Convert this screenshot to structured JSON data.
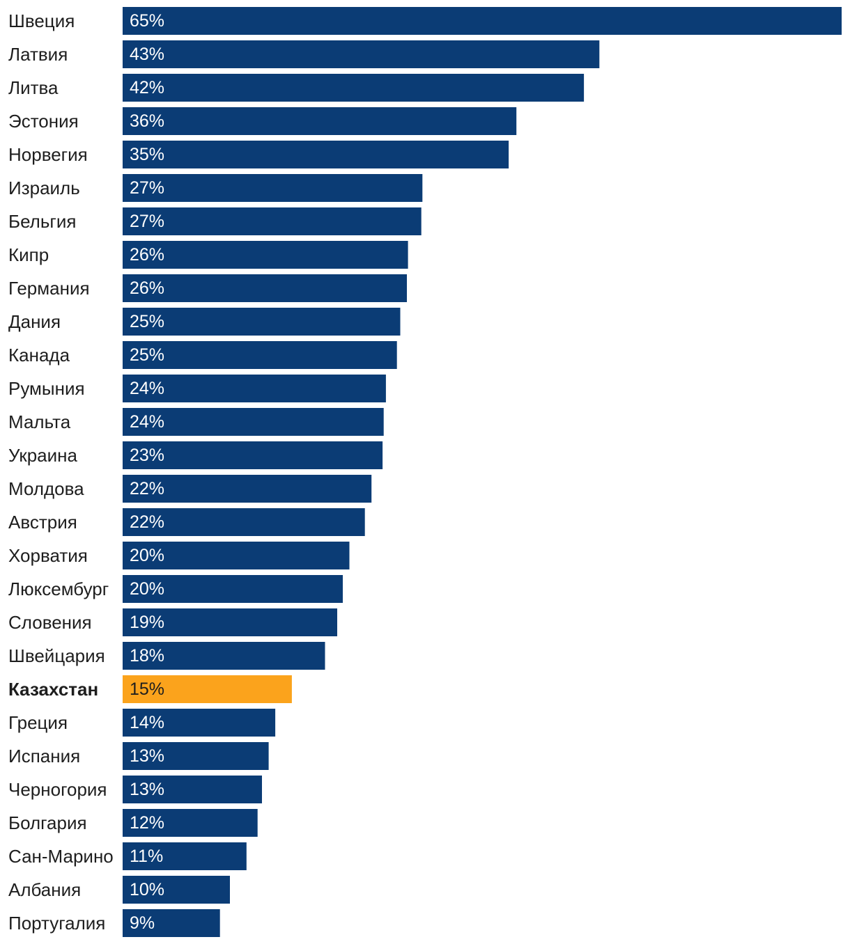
{
  "chart_data": {
    "type": "bar",
    "orientation": "horizontal",
    "title": "",
    "xlabel": "",
    "ylabel": "",
    "xlim": [
      0,
      65
    ],
    "grid": false,
    "legend": "none",
    "colors": {
      "default": "#0b3c75",
      "highlight": "#fba31c",
      "label_on_default": "#ffffff",
      "label_on_highlight": "#1e1e1e"
    },
    "highlight_category": "Казахстан",
    "categories": [
      "Швеция",
      "Латвия",
      "Литва",
      "Эстония",
      "Норвегия",
      "Израиль",
      "Бельгия",
      "Кипр",
      "Германия",
      "Дания",
      "Канада",
      "Румыния",
      "Мальта",
      "Украина",
      "Молдова",
      "Австрия",
      "Хорватия",
      "Люксембург",
      "Словения",
      "Швейцария",
      "Казахстан",
      "Греция",
      "Испания",
      "Черногория",
      "Болгария",
      "Сан-Марино",
      "Албания",
      "Португалия"
    ],
    "values": [
      65,
      43.1,
      41.7,
      35.6,
      34.9,
      27.1,
      27,
      25.8,
      25.7,
      25.1,
      24.8,
      23.8,
      23.6,
      23.5,
      22.5,
      21.9,
      20.5,
      19.9,
      19.4,
      18.3,
      15.3,
      13.8,
      13.2,
      12.6,
      12.2,
      11.2,
      9.7,
      8.8
    ],
    "value_labels": [
      "65%",
      "43%",
      "42%",
      "36%",
      "35%",
      "27%",
      "27%",
      "26%",
      "26%",
      "25%",
      "25%",
      "24%",
      "24%",
      "23%",
      "22%",
      "22%",
      "20%",
      "20%",
      "19%",
      "18%",
      "15%",
      "14%",
      "13%",
      "13%",
      "12%",
      "11%",
      "10%",
      "9%"
    ]
  }
}
